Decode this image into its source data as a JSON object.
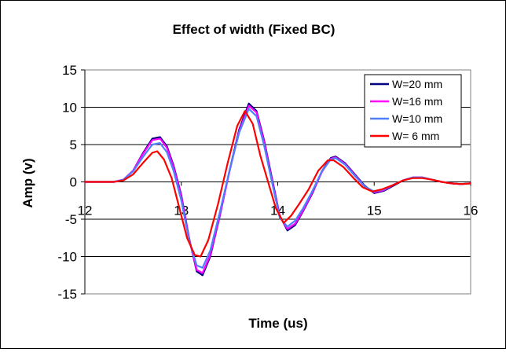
{
  "chart_data": {
    "type": "line",
    "title": "Effect of width (Fixed BC)",
    "xlabel": "Time (us)",
    "ylabel": "Amp (v)",
    "xlim": [
      12,
      16
    ],
    "ylim": [
      -15,
      15
    ],
    "xticks": [
      12,
      13,
      14,
      15,
      16
    ],
    "yticks": [
      15,
      10,
      5,
      0,
      -5,
      -10,
      -15
    ],
    "grid": "horizontal",
    "legend_position": "top-right",
    "series": [
      {
        "name": "W=20 mm",
        "color": "#000080",
        "x": [
          12.0,
          12.3,
          12.4,
          12.5,
          12.6,
          12.7,
          12.78,
          12.85,
          12.92,
          13.0,
          13.08,
          13.16,
          13.22,
          13.3,
          13.4,
          13.5,
          13.6,
          13.7,
          13.78,
          13.86,
          13.94,
          14.02,
          14.1,
          14.18,
          14.26,
          14.36,
          14.46,
          14.55,
          14.6,
          14.7,
          14.8,
          14.9,
          15.0,
          15.1,
          15.2,
          15.3,
          15.4,
          15.5,
          15.6,
          15.7,
          15.8,
          15.9,
          16.0
        ],
        "y": [
          0,
          0,
          0.3,
          1.5,
          3.8,
          5.8,
          6.0,
          4.8,
          2.2,
          -1.8,
          -7.5,
          -12.0,
          -12.5,
          -10.0,
          -4.5,
          1.5,
          7.0,
          10.5,
          9.5,
          5.5,
          0.5,
          -4.5,
          -6.5,
          -5.8,
          -4.0,
          -1.5,
          1.5,
          3.2,
          3.4,
          2.5,
          1.0,
          -0.5,
          -1.5,
          -1.2,
          -0.5,
          0.2,
          0.6,
          0.6,
          0.3,
          0.0,
          -0.2,
          -0.3,
          -0.2
        ]
      },
      {
        "name": "W=16 mm",
        "color": "#ff00ff",
        "x": [
          12.0,
          12.3,
          12.4,
          12.5,
          12.6,
          12.7,
          12.78,
          12.85,
          12.92,
          13.0,
          13.08,
          13.16,
          13.22,
          13.3,
          13.4,
          13.5,
          13.6,
          13.7,
          13.78,
          13.86,
          13.94,
          14.02,
          14.1,
          14.18,
          14.26,
          14.36,
          14.46,
          14.55,
          14.6,
          14.7,
          14.8,
          14.9,
          15.0,
          15.1,
          15.2,
          15.3,
          15.4,
          15.5,
          15.6,
          15.7,
          15.8,
          15.9,
          16.0
        ],
        "y": [
          0,
          0,
          0.3,
          1.5,
          3.7,
          5.6,
          5.8,
          4.6,
          2.0,
          -2.0,
          -7.6,
          -11.8,
          -12.2,
          -9.8,
          -4.4,
          1.4,
          6.8,
          10.2,
          9.3,
          5.3,
          0.3,
          -4.6,
          -6.3,
          -5.6,
          -3.9,
          -1.4,
          1.4,
          3.1,
          3.3,
          2.4,
          0.9,
          -0.6,
          -1.4,
          -1.1,
          -0.4,
          0.2,
          0.6,
          0.6,
          0.3,
          0.0,
          -0.2,
          -0.3,
          -0.2
        ]
      },
      {
        "name": "W=10 mm",
        "color": "#4d7fff",
        "x": [
          12.0,
          12.3,
          12.4,
          12.5,
          12.6,
          12.7,
          12.78,
          12.85,
          12.92,
          13.0,
          13.08,
          13.16,
          13.22,
          13.3,
          13.4,
          13.5,
          13.6,
          13.7,
          13.78,
          13.86,
          13.94,
          14.02,
          14.1,
          14.18,
          14.26,
          14.36,
          14.46,
          14.55,
          14.6,
          14.7,
          14.8,
          14.9,
          15.0,
          15.1,
          15.2,
          15.3,
          15.4,
          15.5,
          15.6,
          15.7,
          15.8,
          15.9,
          16.0
        ],
        "y": [
          0,
          0,
          0.3,
          1.4,
          3.3,
          5.0,
          5.2,
          4.0,
          1.5,
          -2.5,
          -7.8,
          -11.2,
          -11.5,
          -9.2,
          -4.0,
          1.5,
          6.6,
          9.8,
          8.8,
          4.8,
          0.0,
          -4.8,
          -6.0,
          -5.2,
          -3.6,
          -1.2,
          1.5,
          3.0,
          3.2,
          2.3,
          0.8,
          -0.6,
          -1.3,
          -1.0,
          -0.4,
          0.2,
          0.6,
          0.6,
          0.3,
          0.0,
          -0.2,
          -0.3,
          -0.2
        ]
      },
      {
        "name": "W= 6 mm",
        "color": "#ff0000",
        "x": [
          12.0,
          12.3,
          12.4,
          12.5,
          12.6,
          12.7,
          12.75,
          12.82,
          12.9,
          12.98,
          13.06,
          13.14,
          13.2,
          13.28,
          13.38,
          13.48,
          13.58,
          13.66,
          13.74,
          13.82,
          13.9,
          13.98,
          14.06,
          14.14,
          14.22,
          14.32,
          14.42,
          14.52,
          14.58,
          14.68,
          14.78,
          14.88,
          14.98,
          15.08,
          15.2,
          15.3,
          15.4,
          15.5,
          15.6,
          15.7,
          15.8,
          15.9,
          16.0
        ],
        "y": [
          0,
          0,
          0.2,
          1.0,
          2.5,
          3.9,
          4.1,
          3.0,
          0.5,
          -3.5,
          -7.5,
          -9.8,
          -10.0,
          -7.8,
          -3.0,
          2.5,
          7.5,
          9.5,
          7.8,
          3.5,
          0.0,
          -3.5,
          -5.5,
          -4.5,
          -3.0,
          -1.0,
          1.5,
          2.9,
          2.9,
          2.0,
          0.6,
          -0.7,
          -1.3,
          -1.0,
          -0.4,
          0.2,
          0.5,
          0.5,
          0.3,
          0.0,
          -0.2,
          -0.3,
          -0.2
        ]
      }
    ]
  }
}
